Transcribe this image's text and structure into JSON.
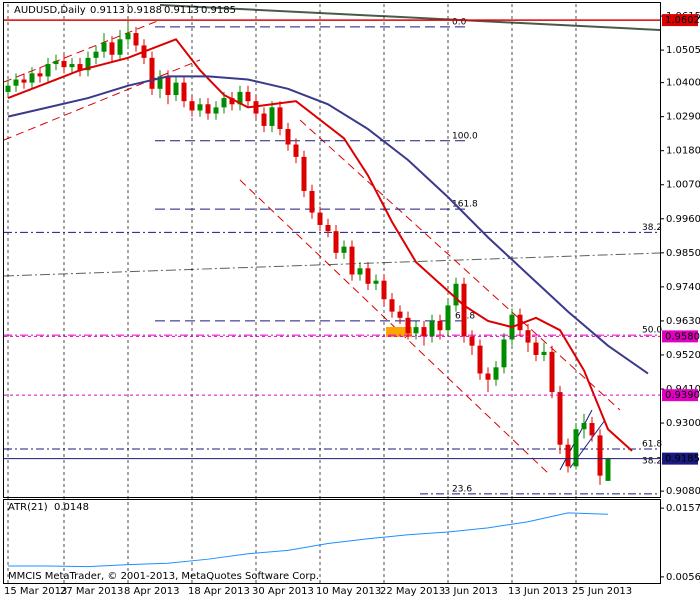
{
  "chart_data": {
    "type": "candlestick",
    "title": "AUDUSD,Daily",
    "categories": [
      "15 Mar 2013",
      null,
      null,
      null,
      null,
      null,
      null,
      "27 Mar 2013",
      null,
      null,
      null,
      null,
      null,
      null,
      null,
      "8 Apr 2013",
      null,
      null,
      null,
      null,
      null,
      null,
      null,
      "18 Apr 2013",
      null,
      null,
      null,
      null,
      null,
      null,
      null,
      "30 Apr 2013",
      null,
      null,
      null,
      null,
      null,
      null,
      null,
      "10 May 2013",
      null,
      null,
      null,
      null,
      null,
      null,
      null,
      "22 May 2013",
      null,
      null,
      null,
      null,
      null,
      null,
      null,
      "3 Jun 2013",
      null,
      null,
      null,
      null,
      null,
      null,
      null,
      "13 Jun 2013",
      null,
      null,
      null,
      null,
      null,
      null,
      null,
      "25 Jun 2013",
      null,
      null,
      null,
      null
    ],
    "open": [
      1.037,
      1.039,
      1.041,
      1.04,
      1.043,
      1.042,
      1.046,
      1.047,
      1.045,
      1.046,
      1.044,
      1.048,
      1.05,
      1.053,
      1.049,
      1.054,
      1.056,
      1.052,
      1.048,
      1.038,
      1.042,
      1.036,
      1.04,
      1.034,
      1.031,
      1.033,
      1.03,
      1.032,
      1.035,
      1.033,
      1.037,
      1.034,
      1.03,
      1.026,
      1.032,
      1.025,
      1.02,
      1.016,
      1.005,
      0.998,
      0.994,
      0.992,
      0.985,
      0.987,
      0.978,
      0.98,
      0.975,
      0.976,
      0.97,
      0.966,
      0.964,
      0.959,
      0.961,
      0.958,
      0.963,
      0.96,
      0.968,
      0.975,
      0.958,
      0.955,
      0.946,
      0.944,
      0.948,
      0.957,
      0.965,
      0.96,
      0.956,
      0.952,
      0.953,
      0.94,
      0.923,
      0.916,
      0.928,
      0.93,
      0.926,
      0.9113
    ],
    "high": [
      1.041,
      1.043,
      1.043,
      1.045,
      1.045,
      1.048,
      1.049,
      1.049,
      1.048,
      1.048,
      1.05,
      1.052,
      1.056,
      1.055,
      1.057,
      1.06,
      1.058,
      1.054,
      1.05,
      1.044,
      1.044,
      1.042,
      1.042,
      1.036,
      1.035,
      1.035,
      1.034,
      1.037,
      1.037,
      1.039,
      1.039,
      1.036,
      1.032,
      1.034,
      1.034,
      1.027,
      1.022,
      1.018,
      1.007,
      1.0,
      0.996,
      0.994,
      0.989,
      0.989,
      0.982,
      0.982,
      0.978,
      0.978,
      0.972,
      0.968,
      0.966,
      0.963,
      0.963,
      0.965,
      0.965,
      0.97,
      0.977,
      0.977,
      0.96,
      0.957,
      0.948,
      0.95,
      0.959,
      0.967,
      0.967,
      0.962,
      0.958,
      0.956,
      0.955,
      0.942,
      0.925,
      0.93,
      0.933,
      0.932,
      0.928,
      0.9188
    ],
    "low": [
      1.035,
      1.037,
      1.038,
      1.038,
      1.04,
      1.04,
      1.044,
      1.043,
      1.043,
      1.042,
      1.042,
      1.046,
      1.048,
      1.047,
      1.047,
      1.052,
      1.05,
      1.046,
      1.036,
      1.035,
      1.033,
      1.034,
      1.032,
      1.029,
      1.029,
      1.028,
      1.028,
      1.03,
      1.031,
      1.031,
      1.032,
      1.028,
      1.024,
      1.024,
      1.023,
      1.018,
      1.014,
      1.003,
      0.996,
      0.992,
      0.99,
      0.983,
      0.983,
      0.976,
      0.976,
      0.973,
      0.973,
      0.968,
      0.964,
      0.962,
      0.957,
      0.957,
      0.955,
      0.956,
      0.957,
      0.958,
      0.966,
      0.956,
      0.952,
      0.944,
      0.94,
      0.942,
      0.946,
      0.955,
      0.958,
      0.953,
      0.95,
      0.95,
      0.938,
      0.92,
      0.914,
      0.915,
      0.925,
      0.924,
      0.91,
      0.9113
    ],
    "close": [
      1.039,
      1.041,
      1.04,
      1.043,
      1.042,
      1.046,
      1.047,
      1.045,
      1.046,
      1.044,
      1.048,
      1.05,
      1.053,
      1.049,
      1.054,
      1.056,
      1.052,
      1.048,
      1.038,
      1.042,
      1.036,
      1.04,
      1.034,
      1.031,
      1.033,
      1.03,
      1.032,
      1.035,
      1.033,
      1.037,
      1.034,
      1.03,
      1.026,
      1.032,
      1.025,
      1.02,
      1.016,
      1.005,
      0.998,
      0.994,
      0.992,
      0.985,
      0.987,
      0.978,
      0.98,
      0.975,
      0.976,
      0.97,
      0.966,
      0.964,
      0.959,
      0.961,
      0.958,
      0.963,
      0.96,
      0.968,
      0.975,
      0.958,
      0.955,
      0.946,
      0.944,
      0.948,
      0.957,
      0.965,
      0.96,
      0.956,
      0.952,
      0.953,
      0.94,
      0.923,
      0.916,
      0.928,
      0.93,
      0.926,
      0.913,
      0.9185
    ],
    "up_color": "#008c00",
    "down_color": "#dd0000",
    "ylim": [
      0.9061,
      1.0654
    ],
    "yticks": [
      1.0615,
      1.0505,
      {
        "value": 1.04,
        "label": "1.0400"
      },
      {
        "value": 1.029,
        "label": "1.0290"
      },
      {
        "value": 1.018,
        "label": "1.0180"
      },
      {
        "value": 1.007,
        "label": "1.0070"
      },
      {
        "value": 0.996,
        "label": "0.9960"
      },
      {
        "value": 0.985,
        "label": "0.9850"
      },
      {
        "value": 0.974,
        "label": "0.9740"
      },
      {
        "value": 0.963,
        "label": "0.9630"
      },
      {
        "value": 0.952,
        "label": "0.9520"
      },
      {
        "value": 0.941,
        "label": "0.9410"
      },
      {
        "value": 0.93,
        "label": "0.9300"
      },
      {
        "value": 0.908,
        "label": "0.9080"
      }
    ],
    "series": [
      {
        "color": "#dd0000",
        "x": [
          0,
          3,
          6,
          9,
          12,
          15,
          18,
          21,
          24,
          27,
          30,
          33,
          36,
          39,
          42,
          45,
          48,
          51,
          54,
          57,
          60,
          63,
          66,
          69,
          72,
          75,
          78
        ],
        "values": [
          1.035,
          1.038,
          1.041,
          1.044,
          1.046,
          1.048,
          1.051,
          1.054,
          1.044,
          1.036,
          1.032,
          1.033,
          1.034,
          1.028,
          1.022,
          1.01,
          0.995,
          0.982,
          0.975,
          0.968,
          0.963,
          0.961,
          0.964,
          0.96,
          0.947,
          0.928,
          0.921
        ]
      },
      {
        "color": "#3a3a8c",
        "x": [
          0,
          5,
          10,
          15,
          20,
          25,
          30,
          35,
          40,
          45,
          50,
          55,
          60,
          65,
          70,
          75,
          80
        ],
        "values": [
          1.029,
          1.032,
          1.035,
          1.039,
          1.042,
          1.042,
          1.041,
          1.038,
          1.033,
          1.025,
          1.015,
          1.003,
          0.99,
          0.978,
          0.966,
          0.955,
          0.946
        ]
      }
    ],
    "price_lines": [
      {
        "value": 1.0602,
        "label": "1.0602",
        "color": "#dd0000"
      },
      {
        "value": 0.958,
        "label": "0.9580",
        "color": "#e000c0"
      },
      {
        "value": 0.939,
        "label": "0.9390",
        "color": "#e000c0"
      },
      {
        "value": 0.9185,
        "label": "0.9185",
        "color": "#1a1a80"
      }
    ],
    "fib_levels": [
      {
        "label": "0.0",
        "value": 1.058
      },
      {
        "label": "100.0",
        "value": 1.0212
      },
      {
        "label": "161.8",
        "value": 0.9991
      },
      {
        "label": "61.8",
        "value": 0.963
      },
      {
        "label": "38.2",
        "value": 0.9916
      },
      {
        "label": "50.0",
        "value": 0.9584
      },
      {
        "label": "61.8",
        "value": 0.9216
      },
      {
        "label": "38.2",
        "value": 0.9161
      },
      {
        "label": "23.6",
        "value": 0.9071
      }
    ],
    "atr": {
      "title": "ATR(21)",
      "value": 0.0148,
      "color": "#1e90ff",
      "ylim": [
        0.0047,
        0.0169
      ],
      "yticks": [
        0.0157,
        0.0056
      ],
      "x": [
        0,
        5,
        10,
        15,
        20,
        25,
        30,
        35,
        40,
        45,
        50,
        55,
        60,
        65,
        70,
        75
      ],
      "values": [
        0.0072,
        0.0072,
        0.0071,
        0.0074,
        0.0076,
        0.0082,
        0.009,
        0.0095,
        0.0105,
        0.0112,
        0.0118,
        0.0122,
        0.0128,
        0.0137,
        0.015,
        0.0148
      ]
    },
    "copyright": "MMCIS MetaTrader, © 2001-2013, MetaQuotes Software Corp."
  }
}
